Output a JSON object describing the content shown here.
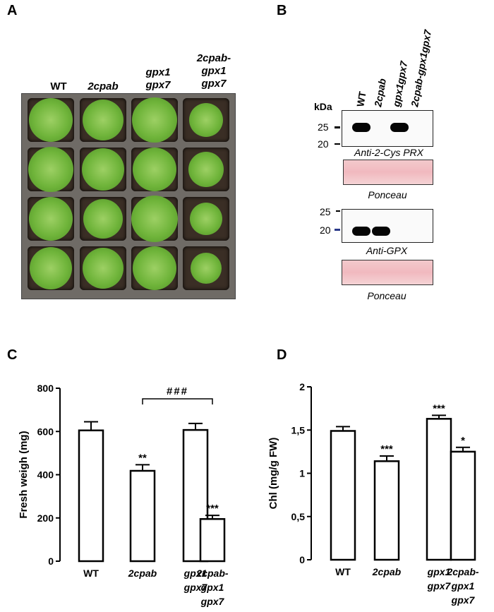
{
  "panels": {
    "a": "A",
    "b": "B",
    "c": "C",
    "d": "D"
  },
  "panel_a": {
    "columns": [
      {
        "line1": "WT",
        "line2": "",
        "line3": "",
        "italic": false
      },
      {
        "line1": "2cpab",
        "line2": "",
        "line3": "",
        "italic": true
      },
      {
        "line1": "gpx1",
        "line2": "gpx7",
        "line3": "",
        "italic": true
      },
      {
        "line1": "2cpab-",
        "line2": "gpx1",
        "line3": "gpx7",
        "italic": true
      }
    ]
  },
  "panel_b": {
    "kda": "kDa",
    "lanes": [
      "WT",
      "2cpab",
      "gpx1gpx7",
      "2cpab-gpx1gpx7"
    ],
    "blot1": {
      "mw_top": "25",
      "mw_bottom": "20",
      "caption": "Anti-2-Cys PRX",
      "bands_in_lanes": [
        1,
        0,
        1,
        0
      ]
    },
    "ponceau1": "Ponceau",
    "blot2": {
      "mw_top": "25",
      "mw_bottom": "20",
      "caption": "Anti-GPX",
      "bands_in_lanes": [
        1,
        1,
        0,
        0
      ]
    },
    "ponceau2": "Ponceau"
  },
  "chart_data": [
    {
      "type": "bar",
      "panel": "C",
      "categories": [
        [
          "WT"
        ],
        [
          "2cpab"
        ],
        [
          "gpx1",
          "gpx7"
        ],
        [
          "2cpab-",
          "gpx1",
          "gpx7"
        ]
      ],
      "category_italic": [
        false,
        true,
        true,
        true
      ],
      "values": [
        605,
        418,
        607,
        195
      ],
      "errors": [
        40,
        28,
        30,
        17
      ],
      "significance": [
        "",
        "**",
        "",
        "***"
      ],
      "comparison": {
        "from": 1,
        "to": 3,
        "label": "###"
      },
      "ylabel": "Fresh weigh (mg)",
      "ylim": [
        0,
        800
      ],
      "yticks": [
        0,
        200,
        400,
        600,
        800
      ],
      "ytick_labels": [
        "0",
        "200",
        "400",
        "600",
        "800"
      ]
    },
    {
      "type": "bar",
      "panel": "D",
      "categories": [
        [
          "WT"
        ],
        [
          "2cpab"
        ],
        [
          "gpx1",
          "gpx7"
        ],
        [
          "2cpab-",
          "gpx1",
          "gpx7"
        ]
      ],
      "category_italic": [
        false,
        true,
        true,
        true
      ],
      "values": [
        1.49,
        1.14,
        1.63,
        1.25
      ],
      "errors": [
        0.05,
        0.06,
        0.04,
        0.05
      ],
      "significance": [
        "",
        "***",
        "***",
        "*"
      ],
      "ylabel": "Chl (mg/g FW)",
      "ylim": [
        0,
        2
      ],
      "yticks": [
        0,
        0.5,
        1,
        1.5,
        2
      ],
      "ytick_labels": [
        "0",
        "0,5",
        "1",
        "1,5",
        "2"
      ]
    }
  ]
}
